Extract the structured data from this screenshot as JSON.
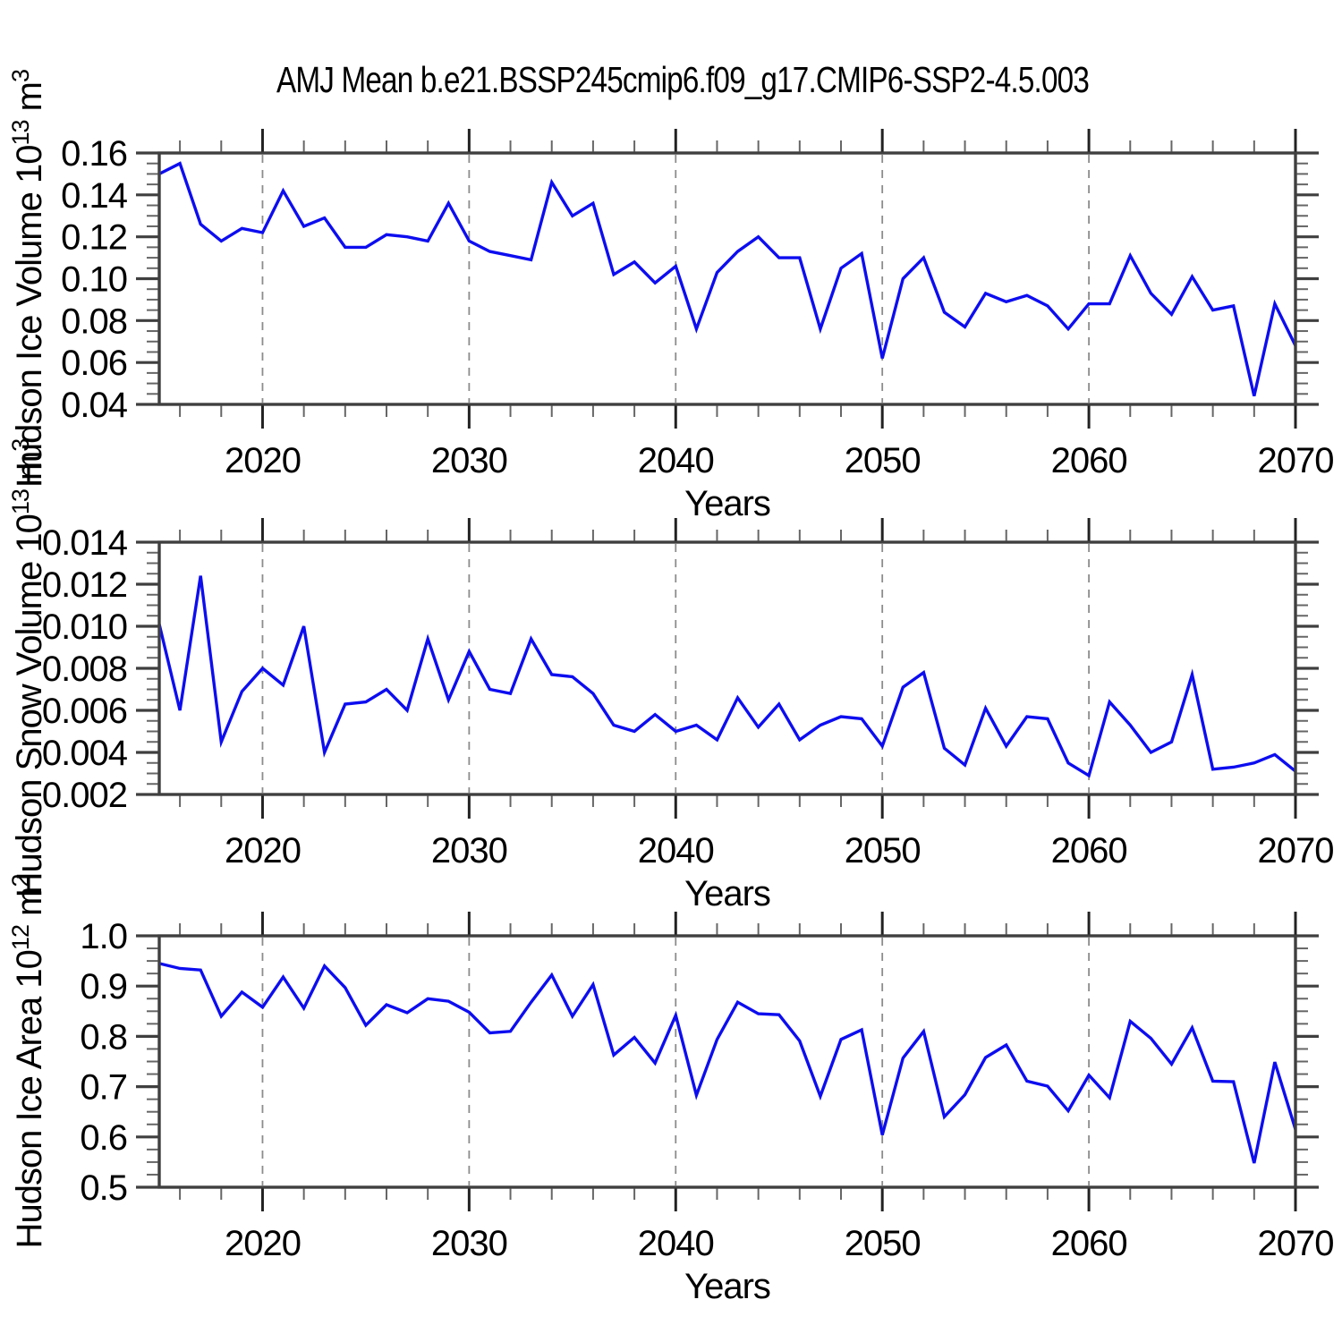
{
  "title": "AMJ Mean b.e21.BSSP245cmip6.f09_g17.CMIP6-SSP2-4.5.003",
  "colors": {
    "line": "#0d0df0",
    "frame": "#3f3f3f",
    "grid": "#8c8c8c",
    "major_tick": "#222222",
    "minor_tick": "#666666",
    "text": "#000000",
    "background": "#ffffff"
  },
  "years": [
    2015,
    2016,
    2017,
    2018,
    2019,
    2020,
    2021,
    2022,
    2023,
    2024,
    2025,
    2026,
    2027,
    2028,
    2029,
    2030,
    2031,
    2032,
    2033,
    2034,
    2035,
    2036,
    2037,
    2038,
    2039,
    2040,
    2041,
    2042,
    2043,
    2044,
    2045,
    2046,
    2047,
    2048,
    2049,
    2050,
    2051,
    2052,
    2053,
    2054,
    2055,
    2056,
    2057,
    2058,
    2059,
    2060,
    2061,
    2062,
    2063,
    2064,
    2065,
    2066,
    2067,
    2068,
    2069,
    2070
  ],
  "x_axis": {
    "label": "Years",
    "range": [
      2015,
      2070
    ],
    "major_ticks": [
      2020,
      2030,
      2040,
      2050,
      2060,
      2070
    ],
    "tick_labels": [
      "2020",
      "2030",
      "2040",
      "2050",
      "2060",
      "2070"
    ],
    "minor_step": 2,
    "grid_years": [
      2020,
      2030,
      2040,
      2050,
      2060
    ]
  },
  "chart_data": [
    {
      "type": "line",
      "name": "ice-volume",
      "line_name": "ice-volume-line",
      "ylabel": "Hudson Ice Volume 10^13 m^3",
      "ylabel_segments": [
        {
          "t": "Hudson Ice Volume 10",
          "sup": false
        },
        {
          "t": "13",
          "sup": true
        },
        {
          "t": " m",
          "sup": false
        },
        {
          "t": "3",
          "sup": true
        }
      ],
      "xlabel": "Years",
      "ylim": [
        0.04,
        0.16
      ],
      "yticks": [
        0.04,
        0.06,
        0.08,
        0.1,
        0.12,
        0.14,
        0.16
      ],
      "ytick_labels": [
        "0.04",
        "0.06",
        "0.08",
        "0.10",
        "0.12",
        "0.14",
        "0.16"
      ],
      "yminor_step": 0.005,
      "grid": "vertical-dashed",
      "legend": "none",
      "values": [
        0.15,
        0.155,
        0.126,
        0.118,
        0.124,
        0.122,
        0.142,
        0.125,
        0.129,
        0.115,
        0.115,
        0.121,
        0.12,
        0.118,
        0.136,
        0.118,
        0.113,
        0.111,
        0.109,
        0.146,
        0.13,
        0.136,
        0.102,
        0.108,
        0.098,
        0.106,
        0.076,
        0.103,
        0.113,
        0.12,
        0.11,
        0.11,
        0.076,
        0.105,
        0.112,
        0.062,
        0.1,
        0.11,
        0.084,
        0.077,
        0.093,
        0.089,
        0.092,
        0.087,
        0.076,
        0.088,
        0.088,
        0.111,
        0.093,
        0.083,
        0.101,
        0.085,
        0.087,
        0.044,
        0.088,
        0.068
      ]
    },
    {
      "type": "line",
      "name": "snow-volume",
      "line_name": "snow-volume-line",
      "ylabel": "Hudson Snow Volume 10^13 m^3",
      "ylabel_segments": [
        {
          "t": "Hudson Snow Volume 10",
          "sup": false
        },
        {
          "t": "13",
          "sup": true
        },
        {
          "t": " m",
          "sup": false
        },
        {
          "t": "3",
          "sup": true
        }
      ],
      "xlabel": "Years",
      "ylim": [
        0.002,
        0.014
      ],
      "yticks": [
        0.002,
        0.004,
        0.006,
        0.008,
        0.01,
        0.012,
        0.014
      ],
      "ytick_labels": [
        "0.002",
        "0.004",
        "0.006",
        "0.008",
        "0.010",
        "0.012",
        "0.014"
      ],
      "yminor_step": 0.0005,
      "grid": "vertical-dashed",
      "legend": "none",
      "values": [
        0.0101,
        0.006,
        0.0124,
        0.0045,
        0.0069,
        0.008,
        0.0072,
        0.01,
        0.004,
        0.0063,
        0.0064,
        0.007,
        0.006,
        0.0094,
        0.0065,
        0.0088,
        0.007,
        0.0068,
        0.0094,
        0.0077,
        0.0076,
        0.0068,
        0.0053,
        0.005,
        0.0058,
        0.005,
        0.0053,
        0.0046,
        0.0066,
        0.0052,
        0.0063,
        0.0046,
        0.0053,
        0.0057,
        0.0056,
        0.0043,
        0.0071,
        0.0078,
        0.0042,
        0.0034,
        0.0061,
        0.0043,
        0.0057,
        0.0056,
        0.0035,
        0.0029,
        0.0064,
        0.0053,
        0.004,
        0.0045,
        0.0077,
        0.0032,
        0.0033,
        0.0035,
        0.0039,
        0.0031
      ]
    },
    {
      "type": "line",
      "name": "ice-area",
      "line_name": "ice-area-line",
      "ylabel": "Hudson Ice Area 10^12 m^2",
      "ylabel_segments": [
        {
          "t": "Hudson Ice Area 10",
          "sup": false
        },
        {
          "t": "12",
          "sup": true
        },
        {
          "t": " m",
          "sup": false
        },
        {
          "t": "2",
          "sup": true
        }
      ],
      "xlabel": "Years",
      "ylim": [
        0.5,
        1.0
      ],
      "yticks": [
        0.5,
        0.6,
        0.7,
        0.8,
        0.9,
        1.0
      ],
      "ytick_labels": [
        "0.5",
        "0.6",
        "0.7",
        "0.8",
        "0.9",
        "1.0"
      ],
      "yminor_step": 0.025,
      "grid": "vertical-dashed",
      "legend": "none",
      "values": [
        0.945,
        0.935,
        0.932,
        0.84,
        0.888,
        0.858,
        0.918,
        0.856,
        0.94,
        0.897,
        0.822,
        0.863,
        0.847,
        0.875,
        0.87,
        0.848,
        0.807,
        0.81,
        0.868,
        0.922,
        0.84,
        0.903,
        0.763,
        0.798,
        0.747,
        0.842,
        0.683,
        0.794,
        0.868,
        0.845,
        0.843,
        0.791,
        0.681,
        0.794,
        0.813,
        0.604,
        0.757,
        0.81,
        0.64,
        0.684,
        0.758,
        0.783,
        0.711,
        0.701,
        0.652,
        0.723,
        0.678,
        0.83,
        0.796,
        0.745,
        0.817,
        0.711,
        0.71,
        0.548,
        0.749,
        0.615
      ]
    }
  ]
}
